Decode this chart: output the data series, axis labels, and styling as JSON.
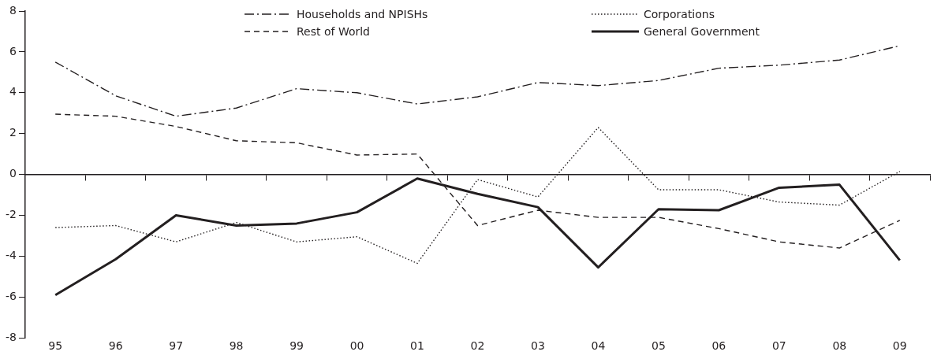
{
  "chart_data": {
    "type": "line",
    "categories": [
      "95",
      "96",
      "97",
      "98",
      "99",
      "00",
      "01",
      "02",
      "03",
      "04",
      "05",
      "06",
      "07",
      "08",
      "09"
    ],
    "series": [
      {
        "name": "Households and NPISHs",
        "color": "#231f20",
        "line_style": "dashdot",
        "values": [
          5.5,
          3.85,
          2.85,
          3.25,
          4.2,
          4.0,
          3.45,
          3.8,
          4.5,
          4.35,
          4.6,
          5.2,
          5.35,
          5.6,
          6.3
        ]
      },
      {
        "name": "Corporations",
        "color": "#231f20",
        "line_style": "dotted",
        "values": [
          -2.6,
          -2.5,
          -3.3,
          -2.35,
          -3.3,
          -3.05,
          -4.35,
          -0.25,
          -1.1,
          2.3,
          -0.75,
          -0.75,
          -1.35,
          -1.5,
          0.15
        ]
      },
      {
        "name": "Rest of World",
        "color": "#231f20",
        "line_style": "dashed",
        "values": [
          2.95,
          2.85,
          2.35,
          1.65,
          1.55,
          0.95,
          1.0,
          -2.5,
          -1.75,
          -2.1,
          -2.1,
          -2.65,
          -3.3,
          -3.6,
          -2.25
        ]
      },
      {
        "name": "General Government",
        "color": "#231f20",
        "line_style": "solid",
        "values": [
          -5.9,
          -4.15,
          -2.0,
          -2.5,
          -2.4,
          -1.85,
          -0.2,
          -0.95,
          -1.6,
          -4.55,
          -1.7,
          -1.75,
          -0.65,
          -0.5,
          -4.2
        ]
      }
    ],
    "ylim": [
      -8,
      8
    ],
    "yticks": [
      -8,
      -6,
      -4,
      -2,
      0,
      2,
      4,
      6,
      8
    ],
    "legend": "top",
    "marker": "none"
  }
}
